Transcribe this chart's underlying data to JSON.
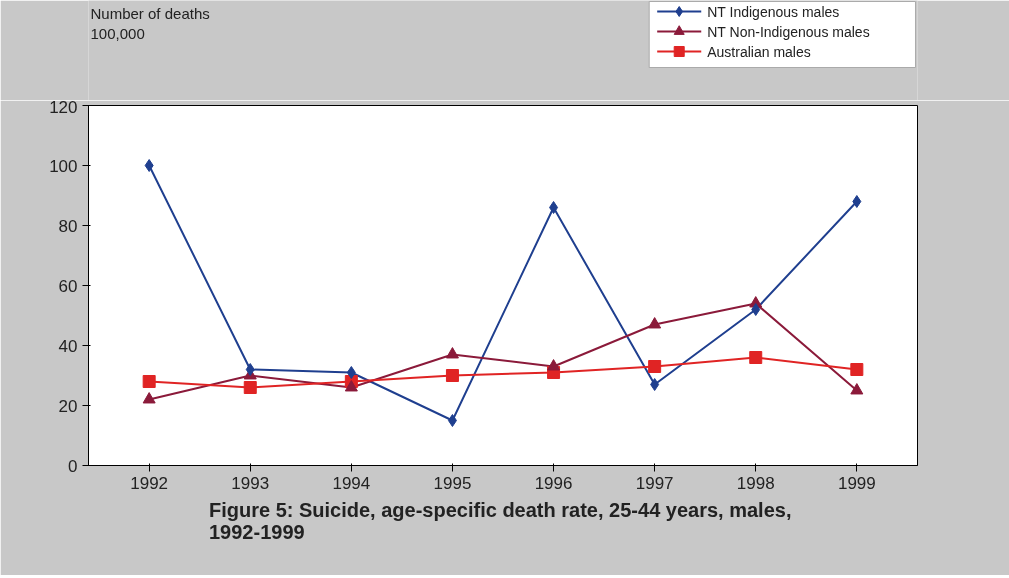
{
  "chart_data": {
    "type": "line",
    "title": "Figure 5:  Suicide, age-specific death rate, 25-44 years, males,\n1992-1999",
    "ylabel": "Number of deaths\n100,000",
    "categories": [
      "1992",
      "1993",
      "1994",
      "1995",
      "1996",
      "1997",
      "1998",
      "1999"
    ],
    "series": [
      {
        "name": "NT Indigenous males",
        "color": "#1f3f8f",
        "marker": "diamond",
        "values": [
          100,
          32,
          31,
          15,
          86,
          27,
          52,
          88
        ]
      },
      {
        "name": "NT Non-Indigenous males",
        "color": "#8b1a3a",
        "marker": "triangle",
        "values": [
          22,
          30,
          26,
          37,
          33,
          47,
          54,
          25
        ]
      },
      {
        "name": "Australian males",
        "color": "#e02424",
        "marker": "square",
        "values": [
          28,
          26,
          28,
          30,
          31,
          33,
          36,
          32
        ]
      }
    ],
    "ylim": [
      0,
      120
    ],
    "yticks": [
      0,
      20,
      40,
      60,
      80,
      100,
      120
    ],
    "grid": false,
    "legend": "top right",
    "line_style": "solid"
  }
}
